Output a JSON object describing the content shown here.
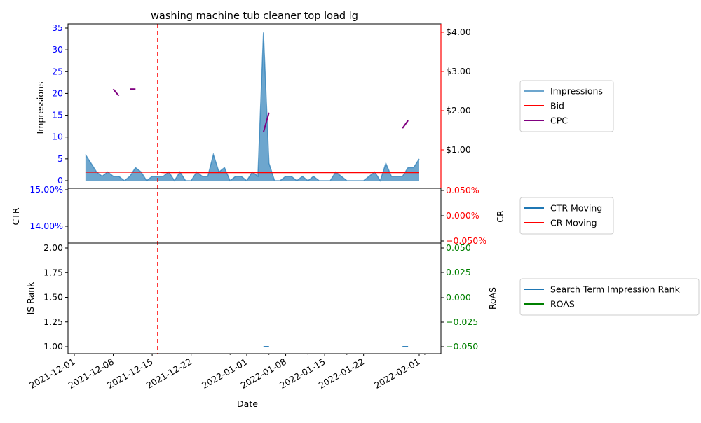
{
  "chart_data": [
    {
      "type": "area",
      "title": "washing machine tub cleaner top load lg",
      "ylabel_left": "Impressions",
      "ylim_left": [
        -1.5,
        35.8
      ],
      "yticks_left": [
        0,
        5,
        10,
        15,
        20,
        25,
        30,
        35
      ],
      "yticklabels_right": [
        "$1.00",
        "$2.00",
        "$3.00",
        "$4.00"
      ],
      "ylim_right": [
        0,
        4.2
      ],
      "yticks_right": [
        1,
        2,
        3,
        4
      ],
      "legend": [
        "Impressions",
        "Bid",
        "CPC"
      ],
      "legend_position": "right",
      "series": [
        {
          "name": "Impressions",
          "axis": "left",
          "x": [
            "2021-12-03",
            "2021-12-04",
            "2021-12-05",
            "2021-12-06",
            "2021-12-07",
            "2021-12-08",
            "2021-12-09",
            "2021-12-10",
            "2021-12-11",
            "2021-12-12",
            "2021-12-13",
            "2021-12-14",
            "2021-12-15",
            "2021-12-16",
            "2021-12-17",
            "2021-12-18",
            "2021-12-19",
            "2021-12-20",
            "2021-12-21",
            "2021-12-22",
            "2021-12-23",
            "2021-12-24",
            "2021-12-25",
            "2021-12-26",
            "2021-12-27",
            "2021-12-28",
            "2021-12-29",
            "2021-12-30",
            "2021-12-31",
            "2022-01-01",
            "2022-01-02",
            "2022-01-03",
            "2022-01-04",
            "2022-01-05",
            "2022-01-06",
            "2022-01-07",
            "2022-01-08",
            "2022-01-09",
            "2022-01-10",
            "2022-01-11",
            "2022-01-12",
            "2022-01-13",
            "2022-01-14",
            "2022-01-15",
            "2022-01-16",
            "2022-01-17",
            "2022-01-18",
            "2022-01-19",
            "2022-01-20",
            "2022-01-21",
            "2022-01-22",
            "2022-01-23",
            "2022-01-24",
            "2022-01-25",
            "2022-01-26",
            "2022-01-27",
            "2022-01-28",
            "2022-01-29",
            "2022-01-30",
            "2022-01-31",
            "2022-02-01"
          ],
          "values": [
            6,
            4,
            2,
            1,
            2,
            1,
            1,
            0,
            1,
            3,
            2,
            0,
            1,
            1,
            1,
            2,
            0,
            2,
            0,
            0,
            2,
            1,
            1,
            6,
            2,
            3,
            0,
            1,
            1,
            0,
            2,
            1,
            34,
            4,
            0,
            0,
            1,
            1,
            0,
            1,
            0,
            1,
            0,
            0,
            0,
            2,
            1,
            0,
            0,
            0,
            0,
            1,
            2,
            0,
            4,
            1,
            1,
            1,
            3,
            3,
            5
          ],
          "color": "#1f77b4"
        },
        {
          "name": "Bid",
          "axis": "right",
          "x": [
            "2021-12-03",
            "2021-12-16",
            "2021-12-17",
            "2022-02-01"
          ],
          "values": [
            0.43,
            0.43,
            0.42,
            0.42
          ],
          "color": "#ff0000"
        },
        {
          "name": "CPC",
          "axis": "right",
          "segments": [
            {
              "x": [
                "2021-12-08",
                "2021-12-09"
              ],
              "values": [
                2.55,
                2.38
              ]
            },
            {
              "x": [
                "2021-12-11",
                "2021-12-12"
              ],
              "values": [
                2.55,
                2.55
              ]
            },
            {
              "x": [
                "2022-01-04",
                "2022-01-05"
              ],
              "values": [
                1.45,
                1.95
              ]
            },
            {
              "x": [
                "2022-01-29",
                "2022-01-30"
              ],
              "values": [
                1.55,
                1.75
              ]
            }
          ],
          "color": "#800080"
        }
      ],
      "vline": {
        "x": "2021-12-16",
        "color": "#ff0000",
        "style": "dashed"
      }
    },
    {
      "type": "line",
      "ylabel_left": "CTR",
      "ylabel_right": "CR",
      "yticklabels_left": [
        "14.00%",
        "15.00%"
      ],
      "yticklabels_right": [
        "−0.050%",
        "0.000%",
        "0.050%"
      ],
      "legend": [
        "CTR Moving",
        "CR Moving"
      ],
      "legend_position": "right",
      "series": [
        {
          "name": "CTR Moving",
          "color": "#1f77b4",
          "values": []
        },
        {
          "name": "CR Moving",
          "color": "#ff0000",
          "values": []
        }
      ]
    },
    {
      "type": "line",
      "ylabel_left": "IS Rank",
      "ylabel_right": "RoAS",
      "yticks_left": [
        1.0,
        1.25,
        1.5,
        1.75,
        2.0
      ],
      "yticklabels_left": [
        "1.00",
        "1.25",
        "1.50",
        "1.75",
        "2.00"
      ],
      "ylim_left": [
        0.95,
        2.05
      ],
      "yticklabels_right": [
        "−0.050",
        "−0.025",
        "0.000",
        "0.025",
        "0.050"
      ],
      "xlabel": "Date",
      "xticklabels": [
        "2021-12-01",
        "2021-12-08",
        "2021-12-15",
        "2021-12-22",
        "2022-01-01",
        "2022-01-08",
        "2022-01-15",
        "2022-01-22",
        "2022-02-01"
      ],
      "legend": [
        "Search Term Impression Rank",
        "ROAS"
      ],
      "legend_position": "right",
      "series": [
        {
          "name": "Search Term Impression Rank",
          "color": "#1f77b4",
          "segments": [
            {
              "x": [
                "2022-01-04",
                "2022-01-05"
              ],
              "values": [
                1.0,
                1.0
              ]
            },
            {
              "x": [
                "2022-01-29",
                "2022-01-30"
              ],
              "values": [
                1.0,
                1.0
              ]
            }
          ]
        },
        {
          "name": "ROAS",
          "color": "#008000",
          "values": []
        }
      ]
    }
  ]
}
